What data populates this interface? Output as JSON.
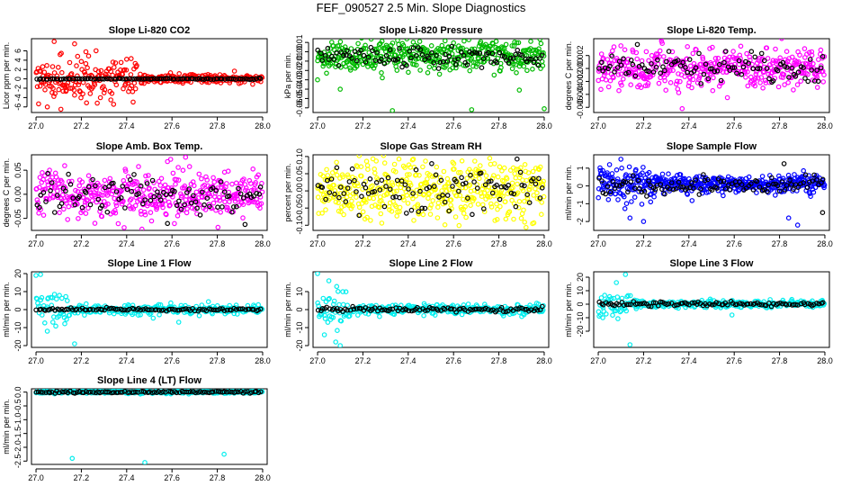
{
  "figure": {
    "title": "FEF_090527  2.5 Min. Slope Diagnostics"
  },
  "chart_data": [
    {
      "id": "co2",
      "type": "scatter",
      "title": "Slope Li-820 CO2",
      "ylabel": "Licor ppm per min.",
      "color": "#ff0000",
      "xlim": [
        26.98,
        28.02
      ],
      "ylim": [
        -7.2,
        8.6
      ],
      "xticks": [
        27.0,
        27.2,
        27.4,
        27.6,
        27.8,
        28.0
      ],
      "xtick_labels": [
        "27.0",
        "27.2",
        "27.4",
        "27.6",
        "27.8",
        "28.0"
      ],
      "yticks": [
        -6,
        -4,
        -2,
        0,
        2,
        4,
        6
      ],
      "ytick_labels": [
        "-6",
        "-4",
        "-2",
        "0",
        "2",
        "4",
        "6"
      ],
      "series": [
        {
          "name": "colored",
          "color": "#ff0000",
          "spread": [
            4.5,
            1.0
          ],
          "spread_until": 27.45,
          "center": 0,
          "n": 360,
          "outliers": [
            [
              27.08,
              8.0
            ],
            [
              27.17,
              7.5
            ],
            [
              27.11,
              -6.5
            ],
            [
              27.05,
              -6.0
            ],
            [
              27.33,
              -4.5
            ],
            [
              27.22,
              5.8
            ],
            [
              27.4,
              4.2
            ],
            [
              27.27,
              -5.2
            ]
          ]
        },
        {
          "name": "black",
          "color": "#000000",
          "spread": [
            0.15,
            0.15
          ],
          "center": 0,
          "n": 100
        }
      ]
    },
    {
      "id": "pressure",
      "type": "scatter",
      "title": "Slope Li-820 Pressure",
      "ylabel": "kPa per min.",
      "color": "#00cc00",
      "xlim": [
        26.98,
        28.02
      ],
      "ylim": [
        -0.065,
        0.014
      ],
      "xticks": [
        27.0,
        27.2,
        27.4,
        27.6,
        27.8,
        28.0
      ],
      "xtick_labels": [
        "27.0",
        "27.2",
        "27.4",
        "27.6",
        "27.8",
        "28.0"
      ],
      "yticks": [
        -0.06,
        -0.05,
        -0.04,
        -0.03,
        -0.02,
        -0.01,
        0.0,
        0.01
      ],
      "ytick_labels": [
        "-0.06",
        "-0.05",
        "-0.04",
        "-0.03",
        "-0.02",
        "-0.01",
        "0.00",
        "0.01"
      ],
      "series": [
        {
          "name": "colored",
          "color": "#00bb00",
          "spread": [
            0.018,
            0.018
          ],
          "center": -0.004,
          "n": 420,
          "outliers": [
            [
              27.33,
              -0.063
            ],
            [
              27.68,
              -0.062
            ],
            [
              28.0,
              -0.061
            ],
            [
              27.89,
              -0.041
            ],
            [
              27.0,
              -0.03
            ],
            [
              27.1,
              -0.04
            ]
          ]
        },
        {
          "name": "black",
          "color": "#000000",
          "spread": [
            0.012,
            0.012
          ],
          "center": -0.006,
          "n": 100
        }
      ]
    },
    {
      "id": "temp",
      "type": "scatter",
      "title": "Slope Li-820 Temp.",
      "ylabel": "degrees C per min.",
      "color": "#ff00ff",
      "xlim": [
        26.98,
        28.02
      ],
      "ylim": [
        -0.0068,
        0.0046
      ],
      "xticks": [
        27.0,
        27.2,
        27.4,
        27.6,
        27.8,
        28.0
      ],
      "xtick_labels": [
        "27.0",
        "27.2",
        "27.4",
        "27.6",
        "27.8",
        "28.0"
      ],
      "yticks": [
        -0.006,
        -0.004,
        -0.002,
        0.0,
        0.002
      ],
      "ytick_labels": [
        "-0.006",
        "-0.004",
        "-0.002",
        "0.000",
        "0.002"
      ],
      "series": [
        {
          "name": "colored",
          "color": "#ff00ff",
          "spread": [
            0.0035,
            0.0035
          ],
          "center": 0,
          "n": 420,
          "outliers": [
            [
              27.37,
              -0.0062
            ],
            [
              27.57,
              -0.0045
            ],
            [
              27.1,
              0.0035
            ]
          ]
        },
        {
          "name": "black",
          "color": "#000000",
          "spread": [
            0.0025,
            0.0025
          ],
          "center": 0,
          "n": 100
        }
      ]
    },
    {
      "id": "ambbox",
      "type": "scatter",
      "title": "Slope Amb. Box Temp.",
      "ylabel": "degrees C per min.",
      "color": "#ff00ff",
      "xlim": [
        26.98,
        28.02
      ],
      "ylim": [
        -0.075,
        0.082
      ],
      "xticks": [
        27.0,
        27.2,
        27.4,
        27.6,
        27.8,
        28.0
      ],
      "xtick_labels": [
        "27.0",
        "27.2",
        "27.4",
        "27.6",
        "27.8",
        "28.0"
      ],
      "yticks": [
        -0.05,
        0.0,
        0.05
      ],
      "ytick_labels": [
        "-0.05",
        "0.00",
        "0.05"
      ],
      "series": [
        {
          "name": "colored",
          "color": "#ff00ff",
          "spread": [
            0.055,
            0.055
          ],
          "center": 0.0,
          "n": 420,
          "outliers": [
            [
              27.66,
              0.077
            ],
            [
              27.58,
              0.068
            ]
          ]
        },
        {
          "name": "black",
          "color": "#000000",
          "spread": [
            0.045,
            0.045
          ],
          "center": -0.005,
          "n": 100
        }
      ]
    },
    {
      "id": "rh",
      "type": "scatter",
      "title": "Slope Gas Stream RH",
      "ylabel": "percent per min.",
      "color": "#ffff00",
      "xlim": [
        26.98,
        28.02
      ],
      "ylim": [
        -0.115,
        0.105
      ],
      "xticks": [
        27.0,
        27.2,
        27.4,
        27.6,
        27.8,
        28.0
      ],
      "xtick_labels": [
        "27.0",
        "27.2",
        "27.4",
        "27.6",
        "27.8",
        "28.0"
      ],
      "yticks": [
        -0.1,
        -0.05,
        0.0,
        0.05,
        0.1
      ],
      "ytick_labels": [
        "-0.10",
        "-0.05",
        "0.00",
        "0.05",
        "0.10"
      ],
      "series": [
        {
          "name": "colored",
          "color": "#ffff00",
          "spread": [
            0.1,
            0.1
          ],
          "center": 0,
          "n": 460
        },
        {
          "name": "black",
          "color": "#000000",
          "spread": [
            0.075,
            0.075
          ],
          "center": 0,
          "n": 100
        }
      ]
    },
    {
      "id": "sampleflow",
      "type": "scatter",
      "title": "Slope Sample Flow",
      "ylabel": "ml/min per min.",
      "color": "#0000ff",
      "xlim": [
        26.98,
        28.02
      ],
      "ylim": [
        -2.5,
        1.75
      ],
      "xticks": [
        27.0,
        27.2,
        27.4,
        27.6,
        27.8,
        28.0
      ],
      "xtick_labels": [
        "27.0",
        "27.2",
        "27.4",
        "27.6",
        "27.8",
        "28.0"
      ],
      "yticks": [
        -2,
        -1,
        0,
        1
      ],
      "ytick_labels": [
        "-2",
        "-1",
        "0",
        "1"
      ],
      "series": [
        {
          "name": "colored",
          "color": "#0000ff",
          "spread": [
            1.1,
            0.6
          ],
          "spread_until": 27.25,
          "center": 0.1,
          "n": 460,
          "outliers": [
            [
              27.1,
              1.5
            ],
            [
              27.14,
              -1.8
            ],
            [
              27.2,
              -2.0
            ],
            [
              27.88,
              -2.2
            ],
            [
              27.84,
              -1.8
            ],
            [
              27.05,
              1.2
            ]
          ]
        },
        {
          "name": "black",
          "color": "#000000",
          "spread": [
            0.55,
            0.55
          ],
          "center": 0,
          "n": 100,
          "outliers": [
            [
              27.82,
              1.25
            ],
            [
              27.99,
              -1.5
            ]
          ]
        }
      ]
    },
    {
      "id": "line1",
      "type": "scatter",
      "title": "Slope Line 1 Flow",
      "ylabel": "ml/min per min.",
      "color": "#00ffff",
      "xlim": [
        26.98,
        28.02
      ],
      "ylim": [
        -21,
        21
      ],
      "xticks": [
        27.0,
        27.2,
        27.4,
        27.6,
        27.8,
        28.0
      ],
      "xtick_labels": [
        "27.0",
        "27.2",
        "27.4",
        "27.6",
        "27.8",
        "28.0"
      ],
      "yticks": [
        -20,
        -10,
        0,
        10,
        20
      ],
      "ytick_labels": [
        "-20",
        "-10",
        "0",
        "10",
        "20"
      ],
      "series": [
        {
          "name": "colored",
          "color": "#00eeee",
          "spread": [
            12,
            3
          ],
          "spread_until": 27.15,
          "center": 0,
          "n": 300,
          "outliers": [
            [
              27.0,
              19
            ],
            [
              27.02,
              19.5
            ],
            [
              27.17,
              -19
            ],
            [
              27.05,
              -12
            ],
            [
              27.63,
              -7
            ]
          ]
        },
        {
          "name": "black",
          "color": "#000000",
          "spread": [
            0.8,
            0.8
          ],
          "center": 0,
          "n": 100
        }
      ]
    },
    {
      "id": "line2",
      "type": "scatter",
      "title": "Slope Line 2 Flow",
      "ylabel": "ml/min per min.",
      "color": "#00ffff",
      "xlim": [
        26.98,
        28.02
      ],
      "ylim": [
        -21,
        21
      ],
      "xticks": [
        27.0,
        27.2,
        27.4,
        27.6,
        27.8,
        28.0
      ],
      "xtick_labels": [
        "27.0",
        "27.2",
        "27.4",
        "27.6",
        "27.8",
        "28.0"
      ],
      "yticks": [
        -20,
        -10,
        0,
        10
      ],
      "ytick_labels": [
        "-20",
        "-10",
        "0",
        "10"
      ],
      "series": [
        {
          "name": "colored",
          "color": "#00eeee",
          "spread": [
            12,
            3
          ],
          "spread_until": 27.15,
          "center": 0,
          "n": 300,
          "outliers": [
            [
              27.0,
              20
            ],
            [
              27.05,
              16
            ],
            [
              27.08,
              -18
            ],
            [
              27.1,
              -20
            ],
            [
              27.03,
              -14
            ]
          ]
        },
        {
          "name": "black",
          "color": "#000000",
          "spread": [
            1.5,
            1.5
          ],
          "center": 0,
          "n": 100
        }
      ]
    },
    {
      "id": "line3",
      "type": "scatter",
      "title": "Slope Line 3 Flow",
      "ylabel": "ml/min per min.",
      "color": "#00ffff",
      "xlim": [
        26.98,
        28.02
      ],
      "ylim": [
        -32,
        24
      ],
      "xticks": [
        27.0,
        27.2,
        27.4,
        27.6,
        27.8,
        28.0
      ],
      "xtick_labels": [
        "27.0",
        "27.2",
        "27.4",
        "27.6",
        "27.8",
        "28.0"
      ],
      "yticks": [
        -20,
        -10,
        0,
        10,
        20
      ],
      "ytick_labels": [
        "-20",
        "-10",
        "0",
        "10",
        "20"
      ],
      "series": [
        {
          "name": "colored",
          "color": "#00eeee",
          "spread": [
            12,
            3
          ],
          "spread_until": 27.15,
          "center": 0,
          "n": 300,
          "outliers": [
            [
              27.14,
              -30
            ],
            [
              27.12,
              22
            ],
            [
              27.08,
              16
            ],
            [
              27.02,
              -10
            ],
            [
              27.59,
              -8
            ]
          ]
        },
        {
          "name": "black",
          "color": "#000000",
          "spread": [
            2.0,
            2.0
          ],
          "center": 0,
          "n": 100
        }
      ]
    },
    {
      "id": "line4",
      "type": "scatter",
      "title": "Slope Line 4 (LT) Flow",
      "ylabel": "ml/min per min.",
      "color": "#00ffff",
      "xlim": [
        26.98,
        28.02
      ],
      "ylim": [
        -2.62,
        0.12
      ],
      "xticks": [
        27.0,
        27.2,
        27.4,
        27.6,
        27.8,
        28.0
      ],
      "xtick_labels": [
        "27.0",
        "27.2",
        "27.4",
        "27.6",
        "27.8",
        "28.0"
      ],
      "yticks": [
        -2.5,
        -2.0,
        -1.5,
        -1.0,
        -0.5,
        0.0
      ],
      "ytick_labels": [
        "-2.5",
        "-2.0",
        "-1.5",
        "-1.0",
        "-0.5",
        "0.0"
      ],
      "series": [
        {
          "name": "colored",
          "color": "#00eeee",
          "spread": [
            0.06,
            0.06
          ],
          "center": 0,
          "n": 300,
          "outliers": [
            [
              27.16,
              -2.4
            ],
            [
              27.48,
              -2.55
            ],
            [
              27.83,
              -2.25
            ]
          ]
        },
        {
          "name": "black",
          "color": "#000000",
          "spread": [
            0.04,
            0.04
          ],
          "center": 0,
          "n": 100
        }
      ]
    }
  ]
}
